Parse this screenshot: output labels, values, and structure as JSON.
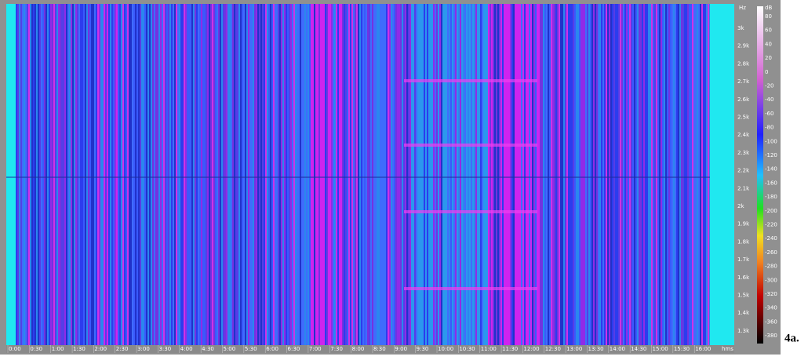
{
  "figure_label": "4a.",
  "time_axis": {
    "labels": [
      "0:00",
      "0:30",
      "1:00",
      "1:30",
      "2:00",
      "2:30",
      "3:00",
      "3:30",
      "4:00",
      "4:30",
      "5:00",
      "5:30",
      "6:00",
      "6:30",
      "7:00",
      "7:30",
      "8:00",
      "8:30",
      "9:00",
      "9:30",
      "10:00",
      "10:30",
      "11:00",
      "11:30",
      "12:00",
      "12:30",
      "13:00",
      "13:30",
      "14:00",
      "14:30",
      "15:00",
      "15:30",
      "16:00"
    ],
    "unit": "hms"
  },
  "frequency_axis": {
    "unit": "Hz",
    "labels": [
      "3k",
      "2.9k",
      "2.8k",
      "2.7k",
      "2.6k",
      "2.5k",
      "2.4k",
      "2.3k",
      "2.2k",
      "2.1k",
      "2k",
      "1.9k",
      "1.8k",
      "1.7k",
      "1.6k",
      "1.5k",
      "1.4k",
      "1.3k"
    ]
  },
  "color_scale": {
    "unit": "dB",
    "labels": [
      "80",
      "60",
      "40",
      "20",
      "0",
      "-20",
      "-40",
      "-60",
      "-80",
      "-100",
      "-120",
      "-140",
      "-160",
      "-180",
      "-200",
      "-220",
      "-240",
      "-260",
      "-280",
      "-300",
      "-320",
      "-340",
      "-360",
      "-380"
    ]
  }
}
